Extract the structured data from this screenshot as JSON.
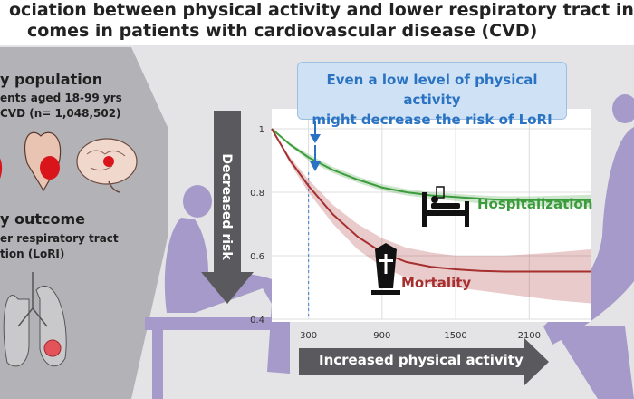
{
  "header": {
    "title_line1": "ociation between physical activity and lower respiratory tract infectio",
    "title_line2": "comes in patients with cardiovascular disease (CVD)"
  },
  "left_panel": {
    "population_heading": "y population",
    "population_line1": "ents aged 18-99 yrs",
    "population_line2": "CVD (n= 1,048,502)",
    "outcome_heading": "y outcome",
    "outcome_line1": "er respiratory tract",
    "outcome_line2": "tion (LoRI)"
  },
  "callout": {
    "line1": "Even a low level of physical activity",
    "line2": "might decrease the risk of LoRI"
  },
  "arrows": {
    "y_label": "Decreased risk",
    "x_label": "Increased physical activity"
  },
  "icons": [
    "heart-icon",
    "brain-icon",
    "lungs-icon",
    "hospital-bed-icon",
    "coffin-icon",
    "person-silhouette-icon"
  ],
  "colors": {
    "hospitalization": "#3c9c3c",
    "mortality": "#a62f2f",
    "callout_text": "#2a72c2",
    "arrow": "#5a5a5e",
    "silhouette": "#a59ac9"
  },
  "chart_data": {
    "type": "line",
    "xlim": [
      0,
      2600
    ],
    "ylim": [
      0.4,
      1.0
    ],
    "x_ticks": [
      300,
      900,
      1500,
      2100
    ],
    "y_ticks": [
      0.4,
      0.6,
      0.8,
      1
    ],
    "y_tick_labels": [
      "0.4",
      "0.6",
      "0.8",
      "1"
    ],
    "reference_x": 300,
    "grid": true,
    "legend": "direct labels",
    "series": [
      {
        "name": "Hospitalization",
        "x": [
          0,
          150,
          300,
          500,
          700,
          900,
          1100,
          1300,
          1500,
          1700,
          1900,
          2100,
          2300,
          2600
        ],
        "y": [
          1.0,
          0.95,
          0.91,
          0.87,
          0.84,
          0.815,
          0.8,
          0.79,
          0.785,
          0.78,
          0.775,
          0.775,
          0.775,
          0.775
        ],
        "lower": [
          1.0,
          0.945,
          0.9,
          0.86,
          0.83,
          0.805,
          0.79,
          0.78,
          0.772,
          0.765,
          0.76,
          0.758,
          0.755,
          0.753
        ],
        "upper": [
          1.0,
          0.955,
          0.92,
          0.88,
          0.85,
          0.825,
          0.81,
          0.8,
          0.795,
          0.79,
          0.787,
          0.787,
          0.789,
          0.792
        ]
      },
      {
        "name": "Mortality",
        "x": [
          0,
          150,
          300,
          500,
          700,
          900,
          1100,
          1300,
          1500,
          1700,
          1900,
          2100,
          2300,
          2600
        ],
        "y": [
          1.0,
          0.9,
          0.82,
          0.73,
          0.66,
          0.61,
          0.58,
          0.565,
          0.557,
          0.552,
          0.55,
          0.55,
          0.55,
          0.55
        ],
        "lower": [
          1.0,
          0.89,
          0.8,
          0.7,
          0.62,
          0.565,
          0.53,
          0.51,
          0.5,
          0.49,
          0.48,
          0.47,
          0.46,
          0.45
        ],
        "upper": [
          1.0,
          0.91,
          0.84,
          0.76,
          0.7,
          0.655,
          0.625,
          0.61,
          0.6,
          0.6,
          0.6,
          0.605,
          0.61,
          0.62
        ]
      }
    ]
  }
}
